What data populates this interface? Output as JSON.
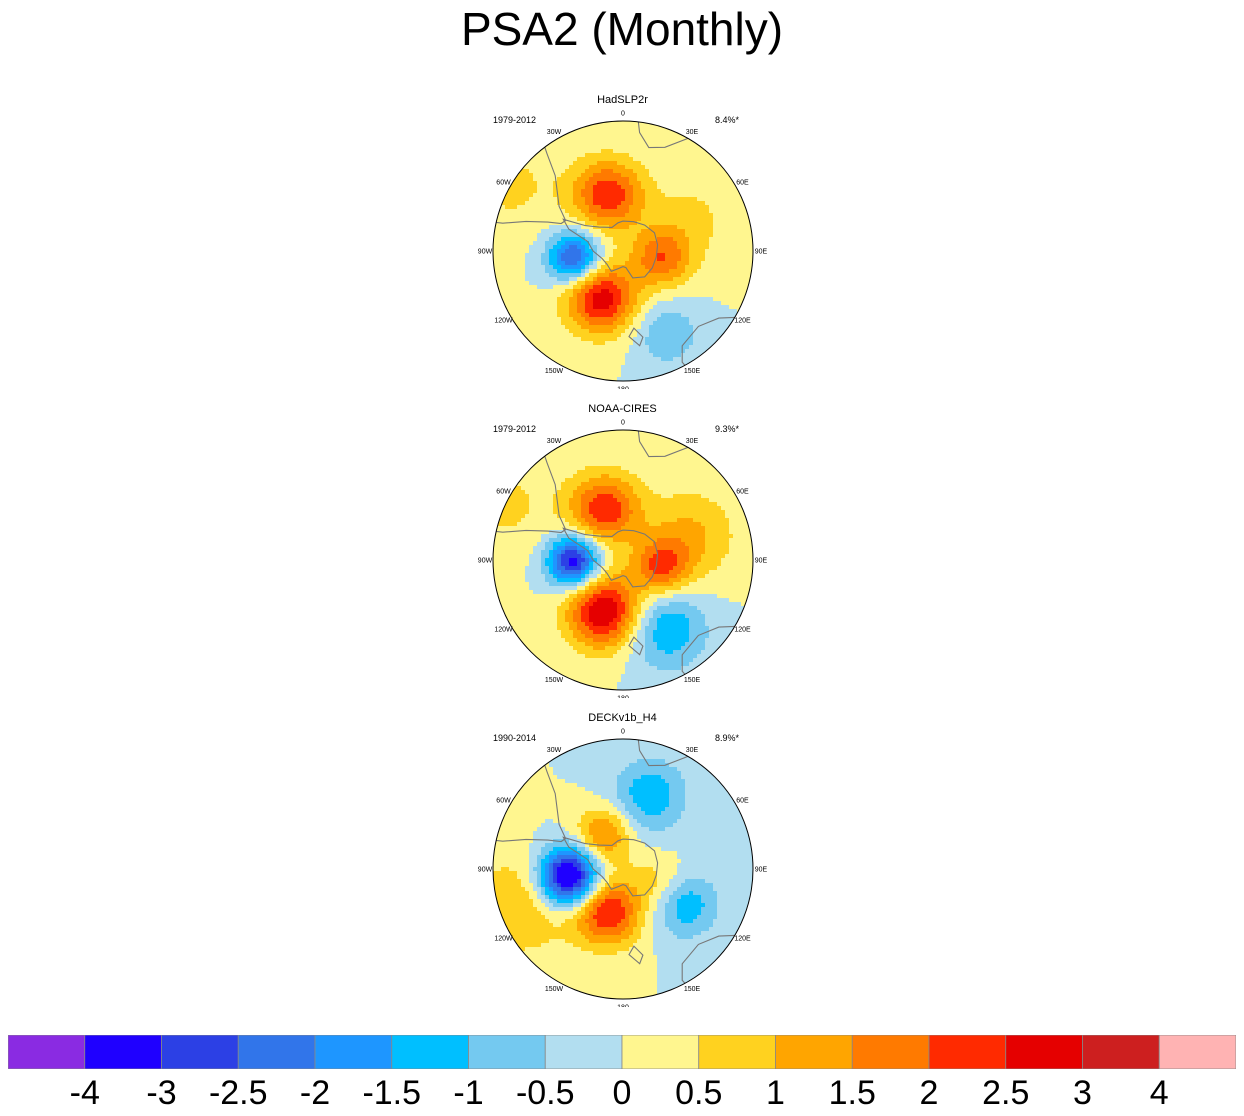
{
  "title": "PSA2 (Monthly)",
  "panels": [
    {
      "name": "HadSLP2r",
      "period": "1979-2012",
      "pct": "8.4%*"
    },
    {
      "name": "NOAA-CIRES",
      "period": "1979-2012",
      "pct": "9.3%*"
    },
    {
      "name": "DECKv1b_H4",
      "period": "1990-2014",
      "pct": "8.9%*"
    }
  ],
  "lon_labels": [
    "0",
    "30E",
    "60E",
    "90E",
    "120E",
    "150E",
    "180",
    "150W",
    "120W",
    "90W",
    "60W",
    "30W"
  ],
  "colorbar": {
    "colors": [
      "#8a2be2",
      "#1f00ff",
      "#2c40e5",
      "#3175ea",
      "#1e96ff",
      "#00bfff",
      "#74c9f0",
      "#b2def0",
      "#fff68f",
      "#ffd21f",
      "#ffa500",
      "#ff7a00",
      "#ff2a00",
      "#e50000",
      "#cd1f1f",
      "#ffb3b3"
    ],
    "labels": [
      "-4",
      "-3",
      "-2.5",
      "-2",
      "-1.5",
      "-1",
      "-0.5",
      "0",
      "0.5",
      "1",
      "1.5",
      "2",
      "2.5",
      "3",
      "4"
    ]
  },
  "chart_data": {
    "type": "heatmap",
    "title": "PSA2 (Monthly)",
    "projection": "south polar stereographic",
    "levels": [
      -4,
      -3,
      -2.5,
      -2,
      -1.5,
      -1,
      -0.5,
      0,
      0.5,
      1,
      1.5,
      2,
      2.5,
      3,
      4
    ],
    "maps": [
      {
        "name": "HadSLP2r",
        "period": "1979-2012",
        "variance_explained": "8.4%*",
        "centers": [
          {
            "lon": 65,
            "colat": 0.58,
            "value": 0.6,
            "spread": 0.25
          },
          {
            "lon": 100,
            "colat": 0.3,
            "value": 1.8,
            "spread": 0.16
          },
          {
            "lon": 345,
            "colat": 0.45,
            "value": 2.4,
            "spread": 0.19
          },
          {
            "lon": 262,
            "colat": 0.38,
            "value": -2.8,
            "spread": 0.14
          },
          {
            "lon": 205,
            "colat": 0.4,
            "value": 2.8,
            "spread": 0.19
          },
          {
            "lon": 152,
            "colat": 0.72,
            "value": -1.0,
            "spread": 0.17
          },
          {
            "lon": 300,
            "colat": 1.0,
            "value": 0.6,
            "spread": 0.28
          }
        ]
      },
      {
        "name": "NOAA-CIRES",
        "variance_explained": "9.3%*",
        "period": "1979-2012",
        "centers": [
          {
            "lon": 70,
            "colat": 0.55,
            "value": 1.1,
            "spread": 0.25
          },
          {
            "lon": 100,
            "colat": 0.3,
            "value": 1.9,
            "spread": 0.15
          },
          {
            "lon": 340,
            "colat": 0.42,
            "value": 2.4,
            "spread": 0.19
          },
          {
            "lon": 268,
            "colat": 0.38,
            "value": -3.5,
            "spread": 0.14
          },
          {
            "lon": 200,
            "colat": 0.42,
            "value": 3.1,
            "spread": 0.2
          },
          {
            "lon": 148,
            "colat": 0.62,
            "value": -1.5,
            "spread": 0.22
          },
          {
            "lon": 295,
            "colat": 1.0,
            "value": 0.6,
            "spread": 0.28
          }
        ]
      },
      {
        "name": "DECKv1b_H4",
        "period": "1990-2014",
        "variance_explained": "8.9%*",
        "centers": [
          {
            "lon": 20,
            "colat": 0.6,
            "value": -1.4,
            "spread": 0.2
          },
          {
            "lon": 120,
            "colat": 0.55,
            "value": -1.4,
            "spread": 0.18
          },
          {
            "lon": 110,
            "colat": 0.3,
            "value": 0.8,
            "spread": 0.15
          },
          {
            "lon": 330,
            "colat": 0.3,
            "value": 1.7,
            "spread": 0.15
          },
          {
            "lon": 262,
            "colat": 0.42,
            "value": -4.2,
            "spread": 0.16
          },
          {
            "lon": 200,
            "colat": 0.35,
            "value": 2.6,
            "spread": 0.18
          },
          {
            "lon": 250,
            "colat": 0.85,
            "value": 1.0,
            "spread": 0.28
          }
        ]
      }
    ]
  }
}
